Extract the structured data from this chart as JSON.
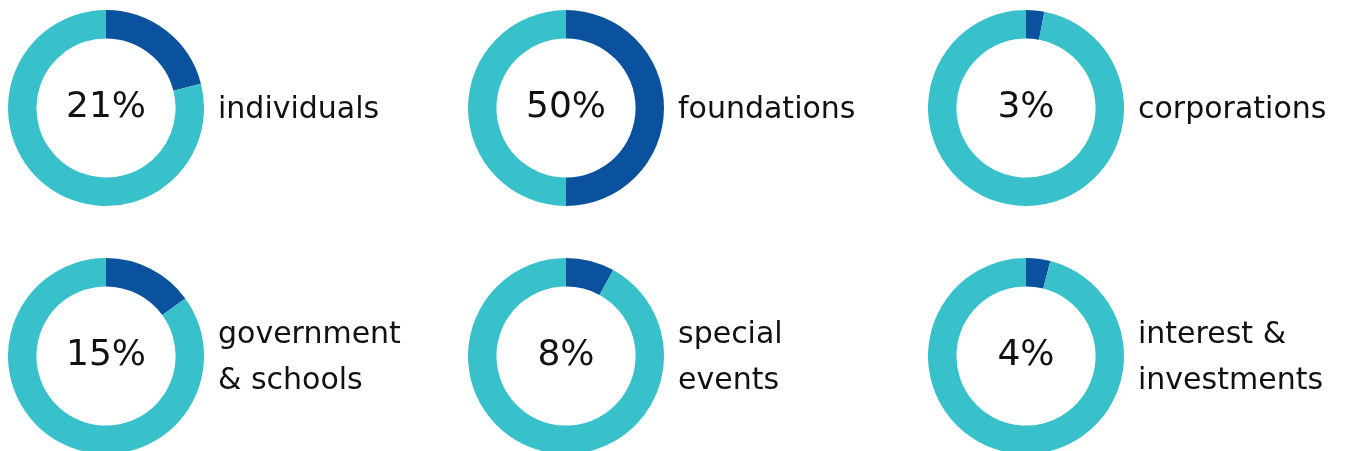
{
  "chart_data": [
    {
      "type": "donut",
      "title": "individuals",
      "categories": [
        null,
        null
      ],
      "values": [
        21,
        79
      ],
      "colors": [
        "#0b529e",
        "#38c0cb"
      ],
      "value_labels": [
        "21%",
        null
      ]
    },
    {
      "type": "donut",
      "title": "foundations",
      "categories": [
        null,
        null
      ],
      "values": [
        50,
        50
      ],
      "colors": [
        "#0b529e",
        "#38c0cb"
      ],
      "value_labels": [
        "50%",
        null
      ]
    },
    {
      "type": "donut",
      "title": "corporations",
      "categories": [
        null,
        null
      ],
      "values": [
        3,
        97
      ],
      "colors": [
        "#0b529e",
        "#38c0cb"
      ],
      "value_labels": [
        "3%",
        null
      ]
    },
    {
      "type": "donut",
      "title": "government & schools",
      "categories": [
        null,
        null
      ],
      "values": [
        15,
        85
      ],
      "colors": [
        "#0b529e",
        "#38c0cb"
      ],
      "value_labels": [
        "15%",
        null
      ]
    },
    {
      "type": "donut",
      "title": "special events",
      "categories": [
        null,
        null
      ],
      "values": [
        8,
        92
      ],
      "colors": [
        "#0b529e",
        "#38c0cb"
      ],
      "value_labels": [
        "8%",
        null
      ]
    },
    {
      "type": "donut",
      "title": "interest & investments",
      "categories": [
        null,
        null
      ],
      "values": [
        4,
        96
      ],
      "colors": [
        "#0b529e",
        "#38c0cb"
      ],
      "value_labels": [
        "4%",
        null
      ]
    }
  ]
}
